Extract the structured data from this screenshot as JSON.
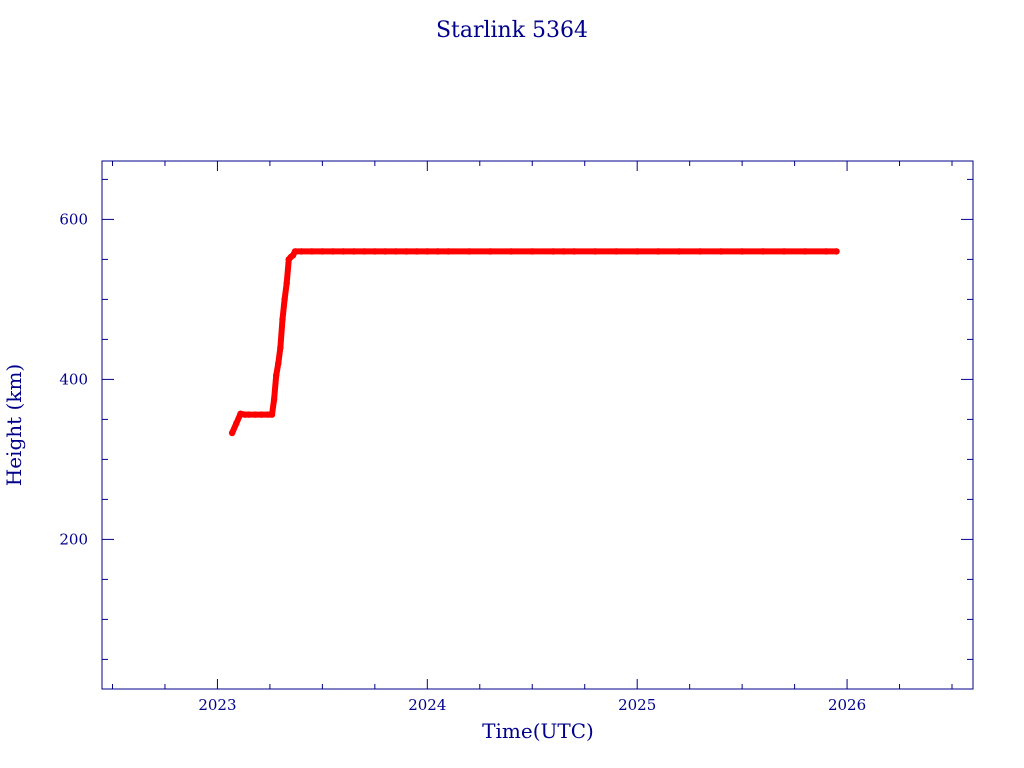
{
  "chart_data": {
    "type": "scatter",
    "title": "Starlink 5364",
    "xlabel": "Time(UTC)",
    "ylabel": "Height (km)",
    "xlim": [
      2022.45,
      2026.6
    ],
    "ylim": [
      13,
      673
    ],
    "x_ticks": [
      2023,
      2024,
      2025,
      2026
    ],
    "x_tick_labels": [
      "2023",
      "2024",
      "2025",
      "2026"
    ],
    "x_minor_step": 0.25,
    "y_ticks": [
      200,
      400,
      600
    ],
    "y_tick_labels": [
      "200",
      "400",
      "600"
    ],
    "y_minor_step": 50,
    "grid": false,
    "colors": {
      "axis": "#00008B",
      "points": "#FF0000",
      "highlight": "#40C0C0"
    },
    "series": [
      {
        "color": "#FF0000",
        "x": [
          2023.07,
          2023.09,
          2023.11,
          2023.13,
          2023.15,
          2023.18,
          2023.21,
          2023.24,
          2023.26,
          2023.27,
          2023.28,
          2023.29,
          2023.3,
          2023.31,
          2023.32,
          2023.33,
          2023.34,
          2023.35,
          2023.36,
          2023.37,
          2023.4,
          2023.45,
          2023.5,
          2023.55,
          2023.6,
          2023.65,
          2023.7,
          2023.75,
          2023.8,
          2023.85,
          2023.9,
          2023.95,
          2024.0,
          2024.05,
          2024.1,
          2024.2,
          2024.3,
          2024.4,
          2024.5,
          2024.6,
          2024.65,
          2024.7,
          2024.8,
          2024.9,
          2025.0,
          2025.1,
          2025.2,
          2025.3,
          2025.4,
          2025.5,
          2025.6,
          2025.7,
          2025.8,
          2025.9,
          2025.95
        ],
        "y": [
          333,
          345,
          357,
          356,
          356,
          356,
          356,
          356,
          356,
          375,
          405,
          420,
          440,
          475,
          500,
          520,
          550,
          553,
          555,
          560,
          560,
          560,
          560,
          560,
          560,
          560,
          560,
          560,
          560,
          560,
          560,
          560,
          560,
          560,
          560,
          560,
          560,
          560,
          560,
          560,
          560,
          560,
          560,
          560,
          560,
          560,
          560,
          560,
          560,
          560,
          560,
          560,
          560,
          560,
          560
        ]
      }
    ]
  }
}
